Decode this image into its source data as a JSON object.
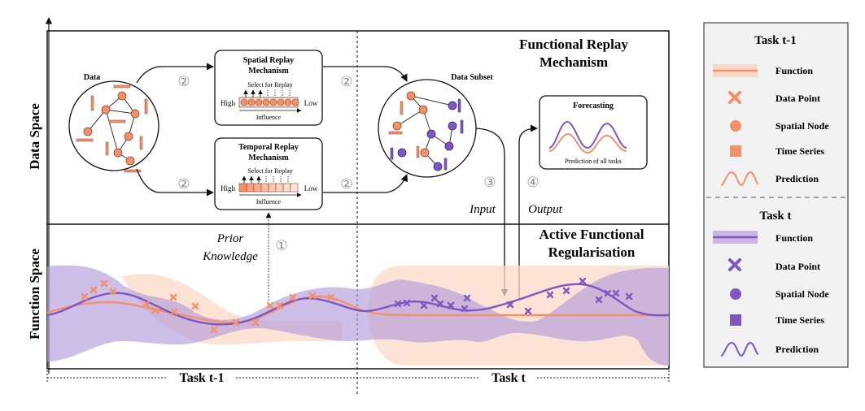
{
  "axes": {
    "y_label_top": "Data Space",
    "y_label_bottom": "Function Space"
  },
  "panel_titles": {
    "replay": "Functional Replay",
    "replay2": "Mechanism",
    "regularisation": "Active Functional",
    "regularisation2": "Regularisation"
  },
  "data_node": {
    "label": "Data"
  },
  "data_subset": {
    "label": "Data Subset"
  },
  "spatial_box": {
    "title1": "Spatial Replay",
    "title2": "Mechanism",
    "select": "Select for Replay",
    "high": "High",
    "low": "Low",
    "influence": "Influence"
  },
  "temporal_box": {
    "title1": "Temporal Replay",
    "title2": "Mechanism",
    "select": "Select for Replay",
    "high": "High",
    "low": "Low",
    "influence": "Influence"
  },
  "forecast_box": {
    "title": "Forecasting",
    "caption": "Prediction of all tasks"
  },
  "steps": {
    "one": "①",
    "two": "②",
    "three": "③",
    "four": "④"
  },
  "annotations": {
    "input": "Input",
    "output": "Output",
    "prior1": "Prior",
    "prior2": "Knowledge"
  },
  "task_axis": {
    "left": "Task t-1",
    "right": "Task t"
  },
  "legend": {
    "section1_title": "Task t-1",
    "section2_title": "Task t",
    "items1": [
      {
        "label": "Function",
        "icon": "band-line"
      },
      {
        "label": "Data Point",
        "icon": "cross"
      },
      {
        "label": "Spatial Node",
        "icon": "circle"
      },
      {
        "label": "Time Series",
        "icon": "square"
      },
      {
        "label": "Prediction",
        "icon": "wave"
      }
    ],
    "items2": [
      {
        "label": "Function",
        "icon": "band-line"
      },
      {
        "label": "Data Point",
        "icon": "cross"
      },
      {
        "label": "Spatial Node",
        "icon": "circle"
      },
      {
        "label": "Time Series",
        "icon": "square"
      },
      {
        "label": "Prediction",
        "icon": "wave"
      }
    ]
  },
  "colors": {
    "orange": "#F4906A",
    "orange_light": "#FBD9C8",
    "purple": "#7E57C2",
    "purple_light": "#C9B6E6"
  }
}
